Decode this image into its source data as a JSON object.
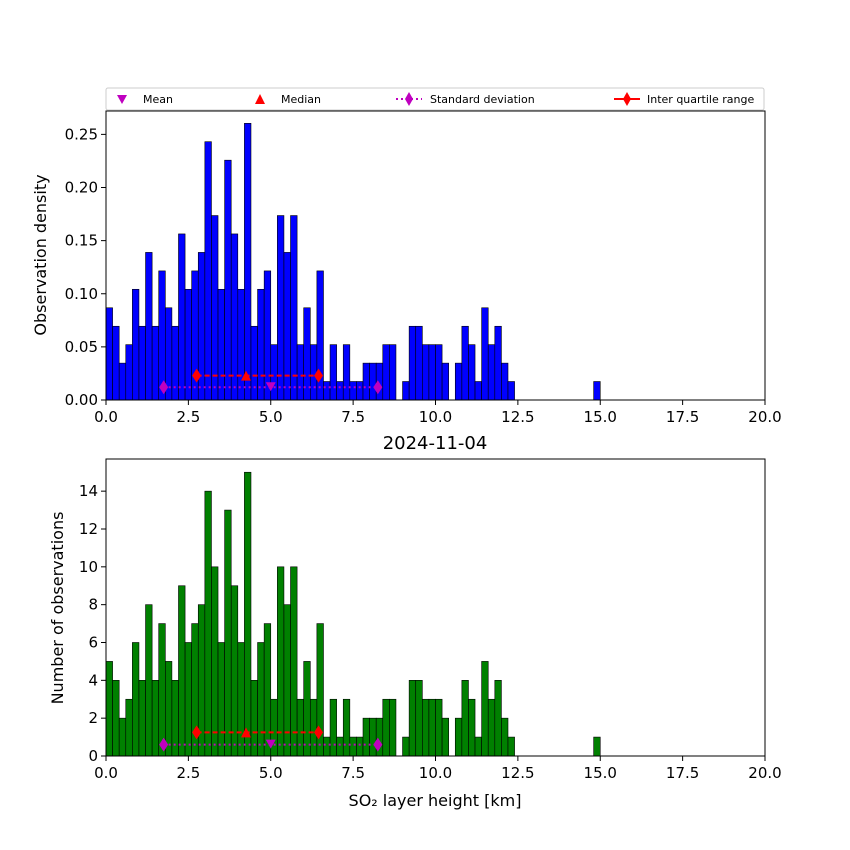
{
  "colors": {
    "top_bars": "#0000ff",
    "bottom_bars": "#008000",
    "mean": "#bf00bf",
    "median": "#ff0000",
    "std": "#bf00bf",
    "iqr": "#ff0000"
  },
  "legend": {
    "mean": "Mean",
    "median": "Median",
    "std": "Standard deviation",
    "iqr": "Inter quartile range"
  },
  "chart_data": [
    {
      "type": "bar",
      "ylabel": "Observation density",
      "xlim": [
        0,
        20
      ],
      "ylim": [
        0,
        0.272
      ],
      "xticks": [
        "0.0",
        "2.5",
        "5.0",
        "7.5",
        "10.0",
        "12.5",
        "15.0",
        "17.5",
        "20.0"
      ],
      "yticks": [
        "0.00",
        "0.05",
        "0.10",
        "0.15",
        "0.20",
        "0.25"
      ],
      "bin_width": 0.2,
      "bin_start": 0.0,
      "values": [
        0.0868,
        0.0694,
        0.0347,
        0.0521,
        0.1042,
        0.0694,
        0.1389,
        0.0694,
        0.1215,
        0.0868,
        0.0694,
        0.1563,
        0.1042,
        0.1215,
        0.1389,
        0.2431,
        0.1736,
        0.1042,
        0.2257,
        0.1563,
        0.1042,
        0.2604,
        0.0694,
        0.1042,
        0.1215,
        0.0521,
        0.1736,
        0.1389,
        0.1736,
        0.0521,
        0.0868,
        0.0521,
        0.1215,
        0.0174,
        0.0521,
        0.0174,
        0.0521,
        0.0174,
        0.0174,
        0.0347,
        0.0347,
        0.0347,
        0.0521,
        0.0521,
        0,
        0.0174,
        0.0694,
        0.0694,
        0.0521,
        0.0521,
        0.0521,
        0.0347,
        0,
        0.0347,
        0.0694,
        0.0521,
        0.0174,
        0.0868,
        0.0521,
        0.0694,
        0.0347,
        0.0174,
        0,
        0,
        0,
        0,
        0,
        0,
        0,
        0,
        0,
        0,
        0,
        0,
        0.0174
      ],
      "stats": {
        "mean": 5.0,
        "median": 4.25,
        "std": [
          1.75,
          8.25
        ],
        "iqr": [
          2.75,
          6.45
        ],
        "std_y": 0.012,
        "iqr_y": 0.023
      }
    },
    {
      "type": "bar",
      "title": "2024-11-04",
      "xlabel": "SO₂ layer height [km]",
      "ylabel": "Number of observations",
      "xlim": [
        0,
        20
      ],
      "ylim": [
        0,
        15.7
      ],
      "xticks": [
        "0.0",
        "2.5",
        "5.0",
        "7.5",
        "10.0",
        "12.5",
        "15.0",
        "17.5",
        "20.0"
      ],
      "yticks": [
        "0",
        "2",
        "4",
        "6",
        "8",
        "10",
        "12",
        "14"
      ],
      "bin_width": 0.2,
      "bin_start": 0.0,
      "values": [
        5,
        4,
        2,
        3,
        6,
        4,
        8,
        4,
        7,
        5,
        4,
        9,
        6,
        7,
        8,
        14,
        10,
        6,
        13,
        9,
        6,
        15,
        4,
        6,
        7,
        3,
        10,
        8,
        10,
        3,
        5,
        3,
        7,
        1,
        3,
        1,
        3,
        1,
        1,
        2,
        2,
        2,
        3,
        3,
        0,
        1,
        4,
        4,
        3,
        3,
        3,
        2,
        0,
        2,
        4,
        3,
        1,
        5,
        3,
        4,
        2,
        1,
        0,
        0,
        0,
        0,
        0,
        0,
        0,
        0,
        0,
        0,
        0,
        0,
        1
      ],
      "stats": {
        "mean": 5.0,
        "median": 4.25,
        "std": [
          1.75,
          8.25
        ],
        "iqr": [
          2.75,
          6.45
        ],
        "std_y": 0.6,
        "iqr_y": 1.25
      }
    }
  ]
}
